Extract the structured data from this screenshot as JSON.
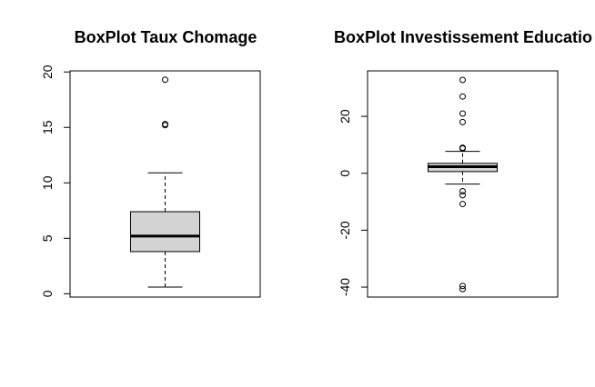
{
  "chart_data": [
    {
      "type": "box",
      "title": "BoxPlot Taux Chomage",
      "xlabel": "",
      "ylabel": "",
      "ylim": [
        -0.3,
        20.1
      ],
      "yticks": [
        0,
        5,
        10,
        15,
        20
      ],
      "ytick_labels": [
        "0",
        "5",
        "10",
        "15",
        "20"
      ],
      "box": {
        "whisker_low": 0.6,
        "q1": 3.8,
        "median": 5.2,
        "q3": 7.4,
        "whisker_high": 10.9,
        "outliers": [
          15.2,
          15.3,
          19.3
        ]
      },
      "fill_color": "#d3d3d3"
    },
    {
      "type": "box",
      "title": "BoxPlot Investissement Educatio",
      "xlabel": "",
      "ylabel": "",
      "ylim": [
        -43.5,
        36.0
      ],
      "yticks": [
        -40,
        -20,
        0,
        20
      ],
      "ytick_labels": [
        "-40",
        "-20",
        "0",
        "20"
      ],
      "box": {
        "whisker_low": -3.8,
        "q1": 0.6,
        "median": 2.3,
        "q3": 3.5,
        "whisker_high": 7.7,
        "outliers": [
          32.8,
          27.0,
          21.0,
          18.0,
          9.0,
          8.7,
          -6.3,
          -7.7,
          -10.8,
          -39.6,
          -40.7
        ]
      },
      "fill_color": "#d3d3d3"
    }
  ]
}
